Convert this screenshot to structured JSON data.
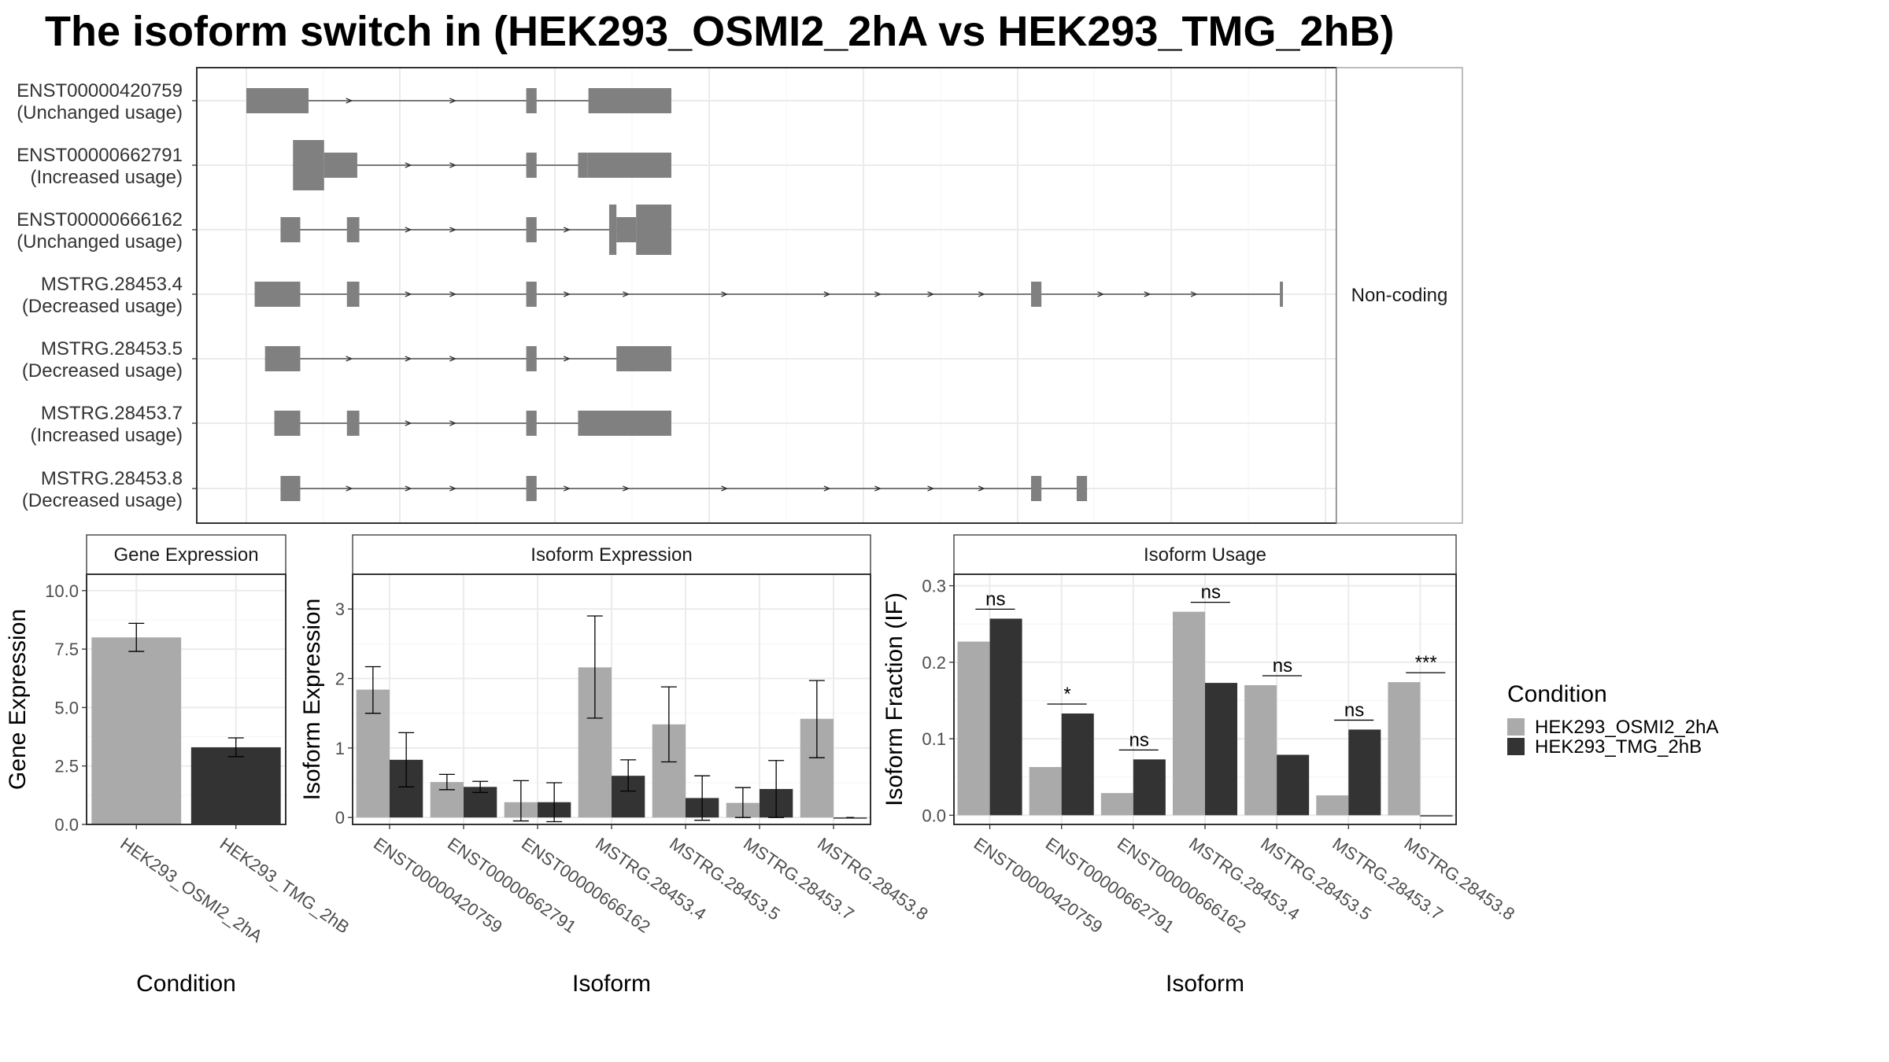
{
  "title": "The isoform switch in  (HEK293_OSMI2_2hA vs HEK293_TMG_2hB)",
  "colors": {
    "condA": "#aaaaaa",
    "condB": "#333333",
    "exon": "#808080",
    "grid": "#ebebeb",
    "panel_border": "#333333",
    "strip_bg": "#ffffff"
  },
  "structure": {
    "coding_label": "Non-coding",
    "transcripts": [
      {
        "id": "ENST00000420759",
        "usage": "(Unchanged usage)",
        "exons": [
          [
            0.0,
            0.06,
            "t"
          ],
          [
            0.27,
            0.28,
            "t"
          ],
          [
            0.33,
            0.41,
            "t"
          ]
        ],
        "span": [
          0.0,
          0.41
        ],
        "arrows": [
          0.1,
          0.2
        ]
      },
      {
        "id": "ENST00000662791",
        "usage": "(Increased usage)",
        "exons": [
          [
            0.045,
            0.075,
            "n"
          ],
          [
            0.075,
            0.107,
            "t"
          ],
          [
            0.27,
            0.28,
            "t"
          ],
          [
            0.32,
            0.329,
            "t"
          ],
          [
            0.329,
            0.41,
            "t"
          ]
        ],
        "span": [
          0.045,
          0.41
        ],
        "arrows": [
          0.157,
          0.2
        ]
      },
      {
        "id": "ENST00000666162",
        "usage": "(Unchanged usage)",
        "exons": [
          [
            0.033,
            0.052,
            "t"
          ],
          [
            0.097,
            0.109,
            "t"
          ],
          [
            0.27,
            0.28,
            "t"
          ],
          [
            0.35,
            0.357,
            "n"
          ],
          [
            0.357,
            0.376,
            "t"
          ],
          [
            0.376,
            0.41,
            "n"
          ]
        ],
        "span": [
          0.033,
          0.41
        ],
        "arrows": [
          0.157,
          0.2,
          0.31
        ]
      },
      {
        "id": "MSTRG.28453.4",
        "usage": "(Decreased usage)",
        "exons": [
          [
            0.008,
            0.052,
            "t"
          ],
          [
            0.097,
            0.109,
            "t"
          ],
          [
            0.27,
            0.28,
            "t"
          ],
          [
            0.757,
            0.767,
            "t"
          ],
          [
            0.997,
            1.0,
            "t"
          ]
        ],
        "span": [
          0.008,
          1.0
        ],
        "arrows": [
          0.157,
          0.2,
          0.31,
          0.367,
          0.462,
          0.561,
          0.61,
          0.661,
          0.71,
          0.825,
          0.87,
          0.915
        ]
      },
      {
        "id": "MSTRG.28453.5",
        "usage": "(Decreased usage)",
        "exons": [
          [
            0.018,
            0.052,
            "t"
          ],
          [
            0.27,
            0.28,
            "t"
          ],
          [
            0.357,
            0.41,
            "t"
          ]
        ],
        "span": [
          0.018,
          0.41
        ],
        "arrows": [
          0.1,
          0.157,
          0.2,
          0.31
        ]
      },
      {
        "id": "MSTRG.28453.7",
        "usage": "(Increased usage)",
        "exons": [
          [
            0.027,
            0.052,
            "t"
          ],
          [
            0.097,
            0.109,
            "t"
          ],
          [
            0.27,
            0.28,
            "t"
          ],
          [
            0.32,
            0.41,
            "t"
          ]
        ],
        "span": [
          0.027,
          0.41
        ],
        "arrows": [
          0.157,
          0.2
        ]
      },
      {
        "id": "MSTRG.28453.8",
        "usage": "(Decreased usage)",
        "exons": [
          [
            0.033,
            0.052,
            "t"
          ],
          [
            0.27,
            0.28,
            "t"
          ],
          [
            0.757,
            0.767,
            "t"
          ],
          [
            0.801,
            0.811,
            "t"
          ]
        ],
        "span": [
          0.033,
          0.811
        ],
        "arrows": [
          0.1,
          0.157,
          0.2,
          0.31,
          0.367,
          0.462,
          0.561,
          0.61,
          0.661,
          0.71
        ]
      }
    ]
  },
  "legend": {
    "title": "Condition",
    "items": [
      "HEK293_OSMI2_2hA",
      "HEK293_TMG_2hB"
    ]
  },
  "chart_data": [
    {
      "type": "bar",
      "title": "Gene Expression",
      "xlabel": "Condition",
      "ylabel": "Gene Expression",
      "ylim": [
        0,
        10.7
      ],
      "yticks": [
        0.0,
        2.5,
        5.0,
        7.5,
        10.0
      ],
      "ytick_labels": [
        "0.0",
        "2.5",
        "5.0",
        "7.5",
        "10.0"
      ],
      "categories": [
        "HEK293_OSMI2_2hA",
        "HEK293_TMG_2hB"
      ],
      "values": [
        8.0,
        3.3
      ],
      "error": [
        [
          7.4,
          8.6
        ],
        [
          2.9,
          3.7
        ]
      ]
    },
    {
      "type": "bar",
      "title": "Isoform Expression",
      "xlabel": "Isoform",
      "ylabel": "Isoform Expression",
      "ylim": [
        -0.1,
        3.5
      ],
      "yticks": [
        0,
        1,
        2,
        3
      ],
      "ytick_labels": [
        "0",
        "1",
        "2",
        "3"
      ],
      "categories": [
        "ENST00000420759",
        "ENST00000662791",
        "ENST00000666162",
        "MSTRG.28453.4",
        "MSTRG.28453.5",
        "MSTRG.28453.7",
        "MSTRG.28453.8"
      ],
      "series": [
        {
          "name": "HEK293_OSMI2_2hA",
          "values": [
            1.84,
            0.51,
            0.22,
            2.16,
            1.34,
            0.21,
            1.42
          ],
          "error": [
            [
              1.5,
              2.17
            ],
            [
              0.4,
              0.62
            ],
            [
              -0.05,
              0.53
            ],
            [
              1.43,
              2.9
            ],
            [
              0.8,
              1.88
            ],
            [
              0.0,
              0.43
            ],
            [
              0.86,
              1.97
            ]
          ]
        },
        {
          "name": "HEK293_TMG_2hB",
          "values": [
            0.83,
            0.44,
            0.22,
            0.6,
            0.28,
            0.41,
            0.0
          ],
          "error": [
            [
              0.44,
              1.22
            ],
            [
              0.36,
              0.52
            ],
            [
              -0.06,
              0.5
            ],
            [
              0.38,
              0.83
            ],
            [
              -0.04,
              0.6
            ],
            [
              0.0,
              0.82
            ],
            [
              0.0,
              0.0
            ]
          ]
        }
      ]
    },
    {
      "type": "bar",
      "title": "Isoform Usage",
      "xlabel": "Isoform",
      "ylabel": "Isoform Fraction (IF)",
      "ylim": [
        -0.012,
        0.315
      ],
      "yticks": [
        0.0,
        0.1,
        0.2,
        0.3
      ],
      "ytick_labels": [
        "0.0",
        "0.1",
        "0.2",
        "0.3"
      ],
      "categories": [
        "ENST00000420759",
        "ENST00000662791",
        "ENST00000666162",
        "MSTRG.28453.4",
        "MSTRG.28453.5",
        "MSTRG.28453.7",
        "MSTRG.28453.8"
      ],
      "series": [
        {
          "name": "HEK293_OSMI2_2hA",
          "values": [
            0.227,
            0.063,
            0.029,
            0.266,
            0.17,
            0.026,
            0.174
          ]
        },
        {
          "name": "HEK293_TMG_2hB",
          "values": [
            0.257,
            0.133,
            0.073,
            0.173,
            0.079,
            0.112,
            0.0
          ]
        }
      ],
      "significance": [
        "ns",
        "*",
        "ns",
        "ns",
        "ns",
        "ns",
        "***"
      ]
    }
  ]
}
